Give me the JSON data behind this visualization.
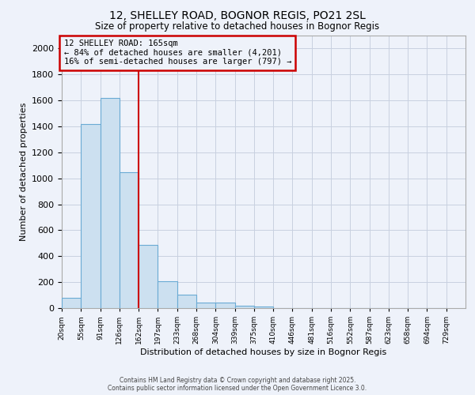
{
  "title1": "12, SHELLEY ROAD, BOGNOR REGIS, PO21 2SL",
  "title2": "Size of property relative to detached houses in Bognor Regis",
  "xlabel": "Distribution of detached houses by size in Bognor Regis",
  "ylabel": "Number of detached properties",
  "bar_color": "#cce0f0",
  "bar_edge_color": "#6aaad4",
  "bar_heights": [
    80,
    1420,
    1620,
    1050,
    490,
    205,
    105,
    40,
    40,
    20,
    10,
    0,
    0,
    0,
    0,
    0,
    0,
    0,
    0,
    0
  ],
  "x_labels": [
    "20sqm",
    "55sqm",
    "91sqm",
    "126sqm",
    "162sqm",
    "197sqm",
    "233sqm",
    "268sqm",
    "304sqm",
    "339sqm",
    "375sqm",
    "410sqm",
    "446sqm",
    "481sqm",
    "516sqm",
    "552sqm",
    "587sqm",
    "623sqm",
    "658sqm",
    "694sqm",
    "729sqm"
  ],
  "ylim": [
    0,
    2100
  ],
  "yticks": [
    0,
    200,
    400,
    600,
    800,
    1000,
    1200,
    1400,
    1600,
    1800,
    2000
  ],
  "vline_index": 4,
  "vline_color": "#cc0000",
  "annotation_title": "12 SHELLEY ROAD: 165sqm",
  "annotation_line2": "← 84% of detached houses are smaller (4,201)",
  "annotation_line3": "16% of semi-detached houses are larger (797) →",
  "annotation_box_color": "#cc0000",
  "footer1": "Contains HM Land Registry data © Crown copyright and database right 2025.",
  "footer2": "Contains public sector information licensed under the Open Government Licence 3.0.",
  "background_color": "#eef2fa",
  "grid_color": "#c8d0e0"
}
